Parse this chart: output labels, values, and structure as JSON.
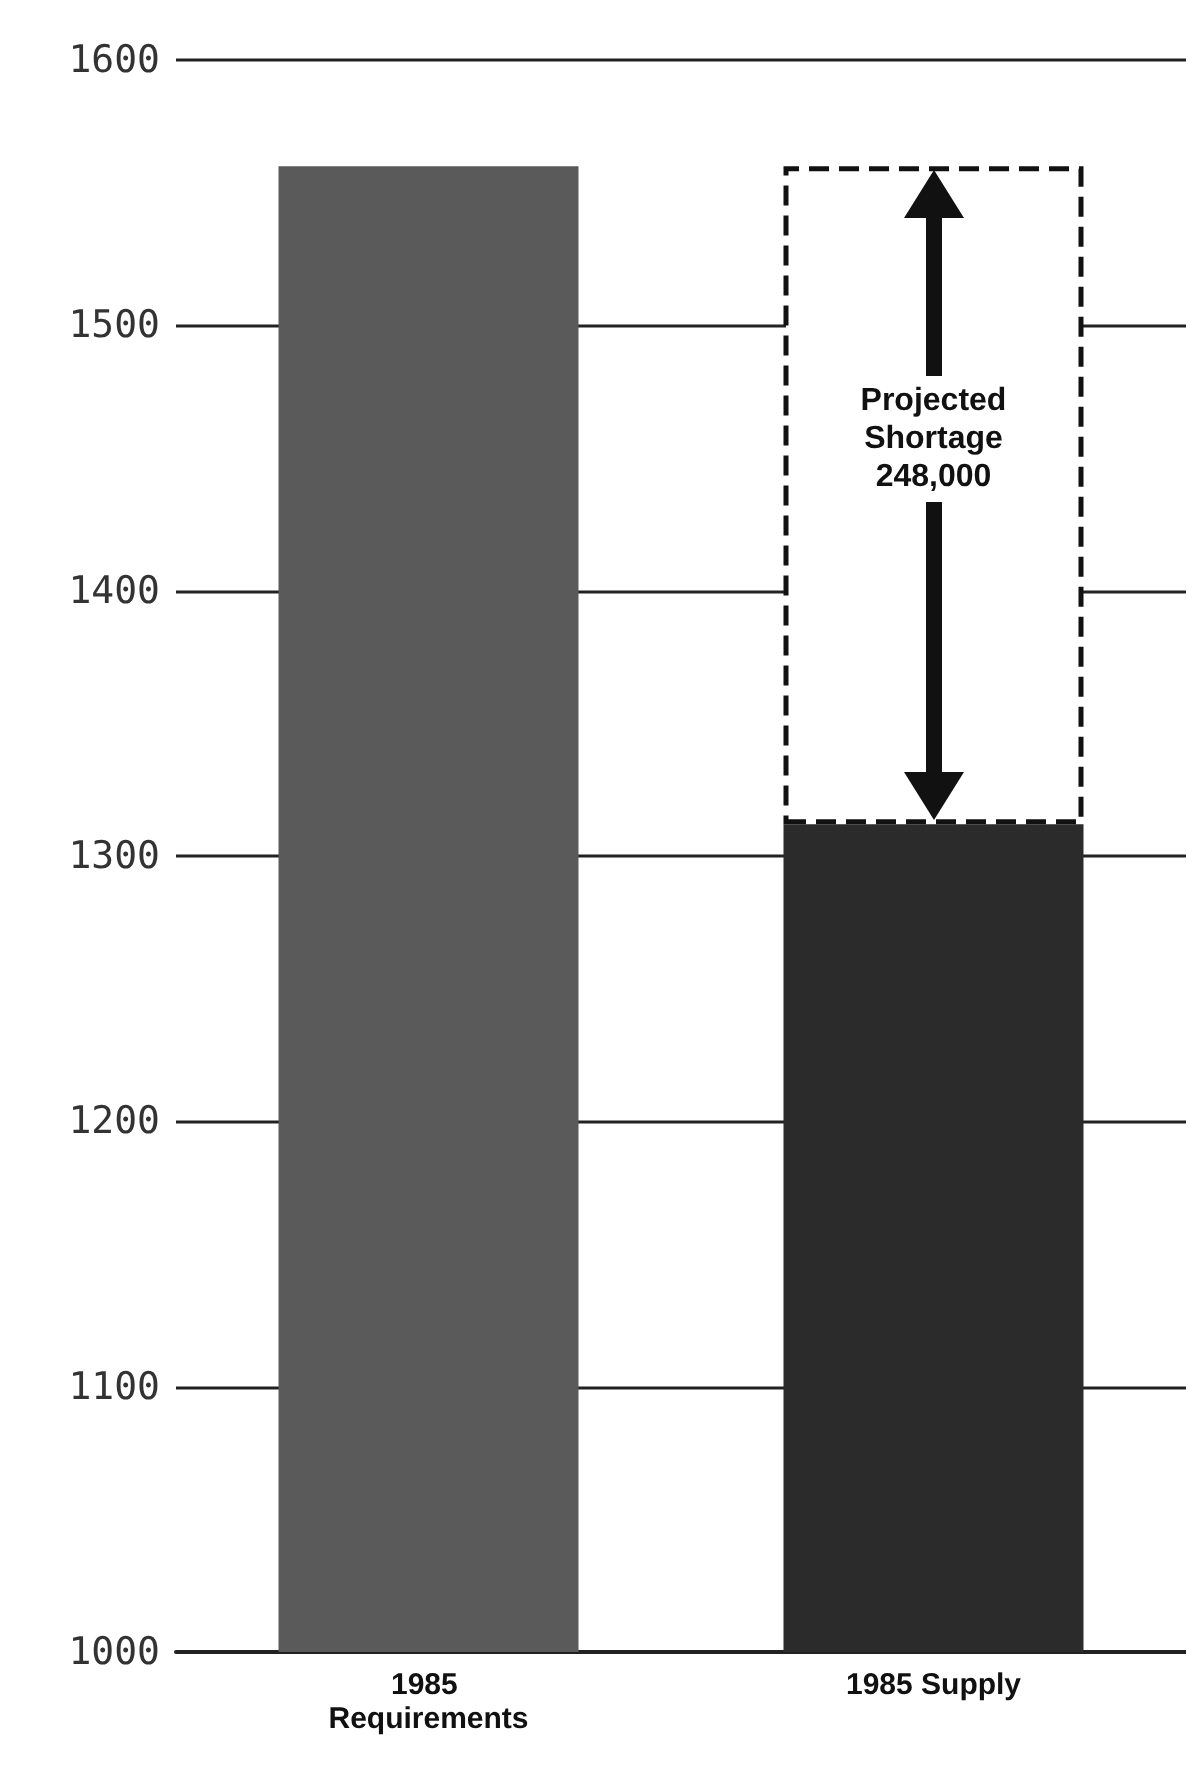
{
  "chart_data": {
    "type": "bar",
    "categories": [
      "1985 Requirements",
      "1985 Supply"
    ],
    "series": [
      {
        "colors": [
          "#5a5a5a",
          "#2b2b2b"
        ],
        "values": [
          1560,
          1312
        ]
      },
      {
        "color": "#ffffff",
        "line_style": "dashed",
        "base": [
          null,
          1312
        ],
        "values": [
          null,
          248
        ]
      }
    ],
    "ylim": [
      1000,
      1600
    ],
    "yticks": [
      1000,
      1100,
      1200,
      1300,
      1400,
      1500,
      1600
    ],
    "grid": "y",
    "annotations": [
      "Projected Shortage 248,000"
    ]
  }
}
